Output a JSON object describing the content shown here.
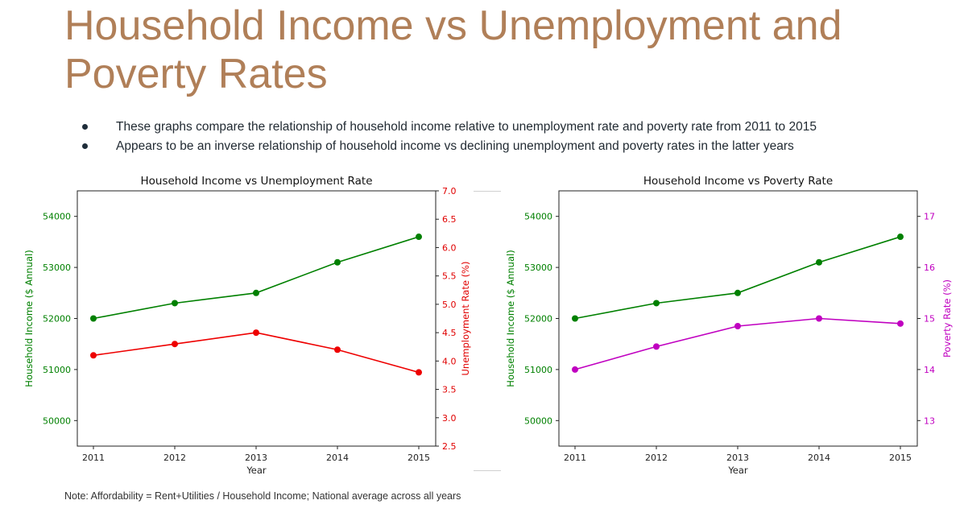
{
  "title": "Household Income vs Unemployment and Poverty Rates",
  "bullets": [
    "These graphs compare the relationship of household income relative to unemployment rate and poverty rate from 2011 to 2015",
    "Appears to be an inverse relationship of household income vs declining unemployment and poverty rates in the latter years"
  ],
  "footnote": "Note: Affordability = Rent+Utilities / Household Income; National average across all years",
  "chart_data": [
    {
      "type": "line",
      "title": "Household Income vs Unemployment Rate",
      "xlabel": "Year",
      "categories": [
        "2011",
        "2012",
        "2013",
        "2014",
        "2015"
      ],
      "left_axis": {
        "label": "Household Income ($ Annual)",
        "color": "#008000",
        "range": [
          49500,
          54500
        ],
        "ticks": [
          50000,
          51000,
          52000,
          53000,
          54000
        ]
      },
      "right_axis": {
        "label": "Unemployment Rate (%)",
        "color": "#e00000",
        "range": [
          2.5,
          7.0
        ],
        "ticks": [
          2.5,
          3.0,
          3.5,
          4.0,
          4.5,
          5.0,
          5.5,
          6.0,
          6.5,
          7.0
        ],
        "tick_labels": [
          "2.5",
          "3.0",
          "3.5",
          "4.0",
          "4.5",
          "5.0",
          "5.5",
          "6.0",
          "6.5",
          "7.0"
        ]
      },
      "series": [
        {
          "axis": "left",
          "color": "#008000",
          "values": [
            52000,
            52300,
            52500,
            53100,
            53600
          ]
        },
        {
          "axis": "right",
          "color": "#ee0000",
          "values": [
            4.1,
            4.3,
            4.5,
            4.2,
            3.8
          ]
        }
      ],
      "grid": false
    },
    {
      "type": "line",
      "title": "Household Income vs Poverty Rate",
      "xlabel": "Year",
      "categories": [
        "2011",
        "2012",
        "2013",
        "2014",
        "2015"
      ],
      "left_axis": {
        "label": "Household Income ($ Annual)",
        "color": "#008000",
        "range": [
          49500,
          54500
        ],
        "ticks": [
          50000,
          51000,
          52000,
          53000,
          54000
        ]
      },
      "right_axis": {
        "label": "Poverty Rate (%)",
        "color": "#c000c0",
        "range": [
          12.5,
          17.5
        ],
        "ticks": [
          13,
          14,
          15,
          16,
          17
        ],
        "tick_labels": [
          "13",
          "14",
          "15",
          "16",
          "17"
        ]
      },
      "series": [
        {
          "axis": "left",
          "color": "#008000",
          "values": [
            52000,
            52300,
            52500,
            53100,
            53600
          ]
        },
        {
          "axis": "right",
          "color": "#c000c0",
          "values": [
            14.0,
            14.45,
            14.85,
            15.0,
            14.9
          ]
        }
      ],
      "grid": false
    }
  ]
}
